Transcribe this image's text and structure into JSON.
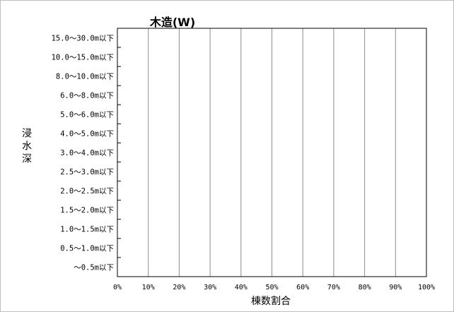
{
  "chart_data": {
    "type": "bar",
    "orientation": "horizontal",
    "title": "木造(W)",
    "xlabel": "棟数割合",
    "ylabel": "浸水深",
    "categories": [
      "15.0～30.0m以下",
      "10.0～15.0m以下",
      "8.0～10.0m以下",
      "6.0～8.0m以下",
      "5.0～6.0m以下",
      "4.0～5.0m以下",
      "3.0～4.0m以下",
      "2.5～3.0m以下",
      "2.0～2.5m以下",
      "1.5～2.0m以下",
      "1.0～1.5m以下",
      "0.5～1.0m以下",
      "～0.5m以下"
    ],
    "values": [
      0,
      0,
      0,
      0,
      0,
      0,
      0,
      0,
      0,
      0,
      0,
      0,
      0
    ],
    "xticks": [
      "0%",
      "10%",
      "20%",
      "30%",
      "40%",
      "50%",
      "60%",
      "70%",
      "80%",
      "90%",
      "100%"
    ],
    "xlim": [
      0,
      100
    ],
    "grid": "vertical"
  }
}
